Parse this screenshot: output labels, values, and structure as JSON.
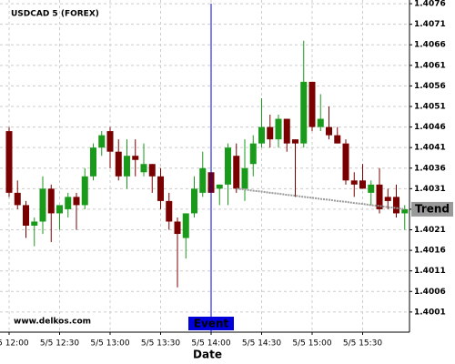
{
  "chart_data": {
    "type": "candlestick",
    "title": "USDCAD 5 (FOREX)",
    "watermark": "www.delkos.com",
    "x_label": "Date",
    "categories": [
      "5/5 12:00",
      null,
      null,
      null,
      null,
      null,
      "5/5 12:30",
      null,
      null,
      null,
      null,
      null,
      "5/5 13:00",
      null,
      null,
      null,
      null,
      null,
      "5/5 13:30",
      null,
      null,
      null,
      null,
      null,
      "5/5 14:00",
      null,
      null,
      null,
      null,
      null,
      "5/5 14:30",
      null,
      null,
      null,
      null,
      null,
      "5/5 15:00",
      null,
      null,
      null,
      null,
      null,
      "5/5 15:30",
      null,
      null,
      null,
      null,
      null
    ],
    "open": [
      1.4045,
      1.403,
      1.4027,
      1.4022,
      1.4023,
      1.4031,
      1.4025,
      1.4026,
      1.4029,
      1.4027,
      1.4034,
      1.4041,
      1.4045,
      1.404,
      1.4034,
      1.4039,
      1.4035,
      1.4037,
      1.4034,
      1.4028,
      1.4023,
      1.4019,
      1.4025,
      1.403,
      1.4035,
      1.4031,
      1.4032,
      1.4039,
      1.4031,
      1.4037,
      1.4042,
      1.4046,
      1.4043,
      1.4048,
      1.4043,
      1.4042,
      1.4057,
      1.4046,
      1.4046,
      1.4044,
      1.4042,
      1.4033,
      1.4033,
      1.403,
      1.4032,
      1.4029,
      1.4029,
      1.4025
    ],
    "high": [
      1.4046,
      1.4033,
      1.4028,
      1.4024,
      1.4034,
      1.4032,
      1.4027,
      1.403,
      1.403,
      1.4036,
      1.4042,
      1.4045,
      1.4046,
      1.4043,
      1.4043,
      1.4043,
      1.4042,
      1.4037,
      1.4036,
      1.403,
      1.4024,
      1.4025,
      1.4034,
      1.404,
      1.4036,
      1.4032,
      1.4042,
      1.4042,
      1.4043,
      1.4044,
      1.4053,
      1.4049,
      1.4049,
      1.4048,
      1.4043,
      1.4067,
      1.4057,
      1.4054,
      1.4051,
      1.4046,
      1.4043,
      1.4035,
      1.4037,
      1.4033,
      1.4036,
      1.4031,
      1.4032,
      1.4027
    ],
    "low": [
      1.4029,
      1.4026,
      1.4019,
      1.4017,
      1.402,
      1.4018,
      1.4021,
      1.4024,
      1.4021,
      1.4026,
      1.4033,
      1.4039,
      1.4036,
      1.4033,
      1.4031,
      1.4034,
      1.4034,
      1.403,
      1.4026,
      1.4021,
      1.4007,
      1.4014,
      1.4024,
      1.4029,
      1.403,
      1.4027,
      1.4027,
      1.403,
      1.4028,
      1.4034,
      1.4041,
      1.4041,
      1.4041,
      1.404,
      1.4029,
      1.4041,
      1.4045,
      1.4045,
      1.4043,
      1.4042,
      1.4032,
      1.4029,
      1.4031,
      1.4027,
      1.4025,
      1.4026,
      1.4024,
      1.4021
    ],
    "close": [
      1.403,
      1.4027,
      1.4022,
      1.4023,
      1.4031,
      1.4025,
      1.4027,
      1.4029,
      1.4027,
      1.4034,
      1.4041,
      1.4044,
      1.404,
      1.4034,
      1.4039,
      1.4038,
      1.4037,
      1.4034,
      1.4028,
      1.4023,
      1.402,
      1.4025,
      1.4031,
      1.4036,
      1.403,
      1.4032,
      1.4041,
      1.4031,
      1.4036,
      1.4042,
      1.4046,
      1.4043,
      1.4048,
      1.4042,
      1.4042,
      1.4057,
      1.4046,
      1.4048,
      1.4044,
      1.4042,
      1.4033,
      1.4032,
      1.4031,
      1.4032,
      1.4026,
      1.4028,
      1.4025,
      1.4026
    ],
    "up_color": "#1a9a1a",
    "down_color": "#7a0000",
    "ylim": [
      1.39961,
      1.40769
    ],
    "yticks": [
      1.4001,
      1.4006,
      1.4011,
      1.4016,
      1.4021,
      1.4026,
      1.4031,
      1.4036,
      1.4041,
      1.4046,
      1.4051,
      1.4056,
      1.4061,
      1.4066,
      1.4071,
      1.4076
    ],
    "grid": true,
    "trend": {
      "name": "Trend",
      "color": "#999999",
      "values": [
        null,
        null,
        null,
        null,
        null,
        null,
        null,
        null,
        null,
        null,
        null,
        null,
        null,
        null,
        null,
        null,
        null,
        null,
        null,
        null,
        null,
        null,
        null,
        null,
        null,
        null,
        null,
        1.4031,
        1.40308,
        1.40305,
        1.40303,
        1.403,
        1.40298,
        1.40295,
        1.40293,
        1.4029,
        1.40288,
        1.40285,
        1.40283,
        1.4028,
        1.40278,
        1.40275,
        1.40273,
        1.4027,
        1.40268,
        1.40265,
        1.40263,
        1.4026
      ]
    },
    "event": {
      "label": "Event",
      "at": "5/5 14:00",
      "color": "#0000dd"
    }
  }
}
